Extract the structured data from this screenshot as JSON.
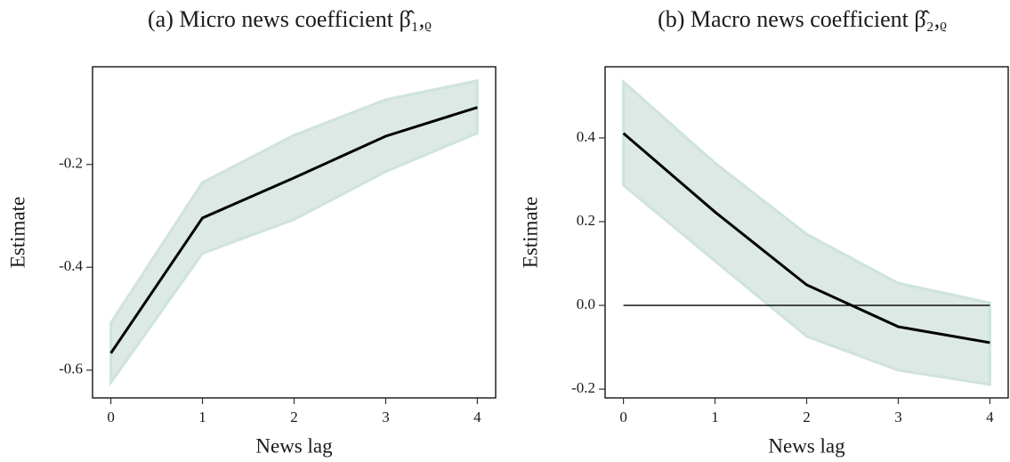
{
  "chart_data": [
    {
      "type": "line",
      "title": "(a) Micro news coefficient β̂₁,ᵨ",
      "xlabel": "News lag",
      "ylabel": "Estimate",
      "x": [
        0,
        1,
        2,
        3,
        4
      ],
      "xlim": [
        -0.2,
        4.2
      ],
      "xticks": [
        0,
        1,
        2,
        3,
        4
      ],
      "ylim": [
        -0.654,
        -0.01
      ],
      "yticks": [
        -0.2,
        -0.4,
        -0.6
      ],
      "values": [
        -0.567,
        -0.304,
        -0.226,
        -0.145,
        -0.089
      ],
      "upper": [
        -0.508,
        -0.235,
        -0.143,
        -0.074,
        -0.037
      ],
      "lower": [
        -0.624,
        -0.373,
        -0.307,
        -0.214,
        -0.139
      ],
      "color": "#000000",
      "band_color": "#dce9e5",
      "band_edge": "#cfe3dd"
    },
    {
      "type": "line",
      "title": "(b) Macro news coefficient β̂₂,ᵨ",
      "xlabel": "News lag",
      "ylabel": "Estimate",
      "x": [
        0,
        1,
        2,
        3,
        4
      ],
      "xlim": [
        -0.2,
        4.2
      ],
      "xticks": [
        0,
        1,
        2,
        3,
        4
      ],
      "ylim": [
        -0.221,
        0.57
      ],
      "yticks": [
        0.4,
        0.2,
        {
          "value": 0,
          "label": "0.0"
        },
        -0.2
      ],
      "values": [
        0.411,
        0.223,
        0.049,
        -0.051,
        -0.089
      ],
      "upper": [
        0.534,
        0.34,
        0.17,
        0.053,
        0.006
      ],
      "lower": [
        0.287,
        0.106,
        -0.074,
        -0.155,
        -0.189
      ],
      "hline": 0,
      "color": "#000000",
      "band_color": "#dce9e5",
      "band_edge": "#cfe3dd"
    }
  ]
}
